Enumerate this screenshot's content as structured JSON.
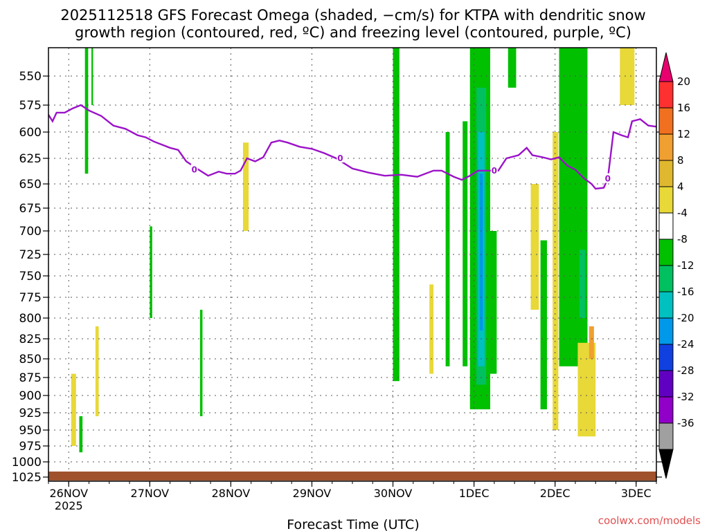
{
  "chart_data": {
    "type": "heatmap",
    "title_lines": [
      "2025112518 GFS Forecast Omega (shaded, −cm/s) for KTPA with dendritic snow",
      "growth region (contoured, red, ºC) and freezing level (contoured, purple, ºC)"
    ],
    "xlabel": "Forecast Time (UTC)",
    "x_range_days": [
      -0.25,
      7.25
    ],
    "x_ticks": [
      {
        "day": 0,
        "label": "26NOV",
        "sub": "2025"
      },
      {
        "day": 1,
        "label": "27NOV"
      },
      {
        "day": 2,
        "label": "28NOV"
      },
      {
        "day": 3,
        "label": "29NOV"
      },
      {
        "day": 4,
        "label": "30NOV"
      },
      {
        "day": 5,
        "label": "1DEC"
      },
      {
        "day": 6,
        "label": "2DEC"
      },
      {
        "day": 7,
        "label": "3DEC"
      }
    ],
    "y_levels": [
      550,
      575,
      600,
      625,
      650,
      675,
      700,
      725,
      750,
      775,
      800,
      825,
      850,
      875,
      900,
      925,
      950,
      975,
      1000,
      1025
    ],
    "colorbar": {
      "labels": [
        20,
        16,
        12,
        8,
        4,
        -4,
        -8,
        -12,
        -16,
        -20,
        -24,
        -28,
        -32,
        -36
      ],
      "colors": [
        "#e8006e",
        "#ff3030",
        "#f07020",
        "#f0a030",
        "#e0b830",
        "#e8d838",
        "#ffffff",
        "#00c000",
        "#00c060",
        "#00c0c0",
        "#0098e8",
        "#1040e0",
        "#6000c0",
        "#9000c8",
        "#a0a0a0",
        "#000000"
      ]
    },
    "freezing_level": {
      "label": "0",
      "label_days": [
        1.55,
        3.35,
        5.25,
        6.65
      ],
      "points": [
        [
          -0.25,
          584
        ],
        [
          -0.2,
          590
        ],
        [
          -0.15,
          582
        ],
        [
          -0.05,
          582
        ],
        [
          0.05,
          578
        ],
        [
          0.15,
          575
        ],
        [
          0.25,
          580
        ],
        [
          0.4,
          585
        ],
        [
          0.55,
          594
        ],
        [
          0.7,
          597
        ],
        [
          0.85,
          603
        ],
        [
          0.95,
          605
        ],
        [
          1.05,
          609
        ],
        [
          1.15,
          612
        ],
        [
          1.25,
          615
        ],
        [
          1.35,
          617
        ],
        [
          1.45,
          628
        ],
        [
          1.6,
          636
        ],
        [
          1.72,
          642
        ],
        [
          1.85,
          638
        ],
        [
          1.95,
          640
        ],
        [
          2.05,
          640
        ],
        [
          2.12,
          637
        ],
        [
          2.2,
          625
        ],
        [
          2.3,
          628
        ],
        [
          2.4,
          624
        ],
        [
          2.5,
          610
        ],
        [
          2.6,
          608
        ],
        [
          2.7,
          610
        ],
        [
          2.85,
          614
        ],
        [
          3.0,
          616
        ],
        [
          3.15,
          620
        ],
        [
          3.3,
          625
        ],
        [
          3.5,
          635
        ],
        [
          3.7,
          639
        ],
        [
          3.9,
          642
        ],
        [
          4.1,
          641
        ],
        [
          4.3,
          643
        ],
        [
          4.5,
          637
        ],
        [
          4.6,
          637
        ],
        [
          4.75,
          643
        ],
        [
          4.85,
          646
        ],
        [
          4.95,
          642
        ],
        [
          5.05,
          637
        ],
        [
          5.2,
          637
        ],
        [
          5.3,
          637
        ],
        [
          5.4,
          625
        ],
        [
          5.55,
          622
        ],
        [
          5.65,
          615
        ],
        [
          5.72,
          622
        ],
        [
          5.85,
          624
        ],
        [
          5.95,
          626
        ],
        [
          6.05,
          624
        ],
        [
          6.15,
          632
        ],
        [
          6.25,
          636
        ],
        [
          6.35,
          644
        ],
        [
          6.45,
          650
        ],
        [
          6.5,
          655
        ],
        [
          6.6,
          654
        ],
        [
          6.65,
          645
        ],
        [
          6.72,
          600
        ],
        [
          6.82,
          603
        ],
        [
          6.9,
          605
        ],
        [
          6.95,
          590
        ],
        [
          7.05,
          588
        ],
        [
          7.15,
          594
        ],
        [
          7.25,
          595
        ]
      ]
    },
    "omega_shading": [
      {
        "cls": 7,
        "day0": 0.2,
        "day1": 0.24,
        "p0": 520,
        "p1": 640,
        "name": "green-streak-26nov"
      },
      {
        "cls": 7,
        "day0": 0.28,
        "day1": 0.3,
        "p0": 520,
        "p1": 575,
        "name": "green-streak-26nov-b"
      },
      {
        "cls": 7,
        "day0": 0.13,
        "day1": 0.17,
        "p0": 930,
        "p1": 985,
        "name": "green-streak-26nov-low"
      },
      {
        "cls": 7,
        "day0": 1.0,
        "day1": 1.03,
        "p0": 695,
        "p1": 800,
        "name": "green-streak-27nov"
      },
      {
        "cls": 7,
        "day0": 1.62,
        "day1": 1.65,
        "p0": 790,
        "p1": 930,
        "name": "green-streak-27nov-b"
      },
      {
        "cls": 7,
        "day0": 4.0,
        "day1": 4.08,
        "p0": 520,
        "p1": 880,
        "name": "green-col-30nov"
      },
      {
        "cls": 7,
        "day0": 4.65,
        "day1": 4.7,
        "p0": 600,
        "p1": 860,
        "name": "green-col-30nov-b"
      },
      {
        "cls": 7,
        "day0": 4.86,
        "day1": 4.92,
        "p0": 590,
        "p1": 860,
        "name": "green-col-30nov-c"
      },
      {
        "cls": 7,
        "day0": 4.95,
        "day1": 5.2,
        "p0": 525,
        "p1": 920,
        "name": "green-block-1dec"
      },
      {
        "cls": 8,
        "day0": 5.03,
        "day1": 5.15,
        "p0": 560,
        "p1": 885,
        "name": "teal-block-1dec"
      },
      {
        "cls": 9,
        "day0": 5.05,
        "day1": 5.13,
        "p0": 600,
        "p1": 860,
        "name": "cyan-block-1dec"
      },
      {
        "cls": 10,
        "day0": 5.07,
        "day1": 5.11,
        "p0": 640,
        "p1": 815,
        "name": "blue-core-1dec"
      },
      {
        "cls": 7,
        "day0": 5.2,
        "day1": 5.28,
        "p0": 700,
        "p1": 870,
        "name": "green-col-1dec-b"
      },
      {
        "cls": 7,
        "day0": 5.42,
        "day1": 5.52,
        "p0": 520,
        "p1": 560,
        "name": "green-top-1dec"
      },
      {
        "cls": 7,
        "day0": 5.82,
        "day1": 5.9,
        "p0": 710,
        "p1": 920,
        "name": "green-col-2dec"
      },
      {
        "cls": 7,
        "day0": 6.05,
        "day1": 6.4,
        "p0": 525,
        "p1": 860,
        "name": "green-block-2dec"
      },
      {
        "cls": 8,
        "day0": 6.3,
        "day1": 6.37,
        "p0": 720,
        "p1": 800,
        "name": "teal-block-2dec"
      }
    ],
    "positive_shading": [
      {
        "day0": 0.03,
        "day1": 0.09,
        "p0": 870,
        "p1": 975,
        "name": "yellow-streak-26nov"
      },
      {
        "day0": 0.33,
        "day1": 0.37,
        "p0": 810,
        "p1": 930,
        "name": "yellow-streak-26nov-b"
      },
      {
        "day0": 2.15,
        "day1": 2.22,
        "p0": 610,
        "p1": 700,
        "name": "yellow-streak-28nov"
      },
      {
        "day0": 4.45,
        "day1": 4.5,
        "p0": 760,
        "p1": 870,
        "name": "yellow-streak-30nov"
      },
      {
        "day0": 5.7,
        "day1": 5.8,
        "p0": 650,
        "p1": 790,
        "name": "yellow-col-1dec"
      },
      {
        "day0": 5.97,
        "day1": 6.04,
        "p0": 600,
        "p1": 950,
        "name": "yellow-col-2dec"
      },
      {
        "day0": 6.28,
        "day1": 6.5,
        "p0": 830,
        "p1": 960,
        "name": "yellow-col-2dec-b"
      },
      {
        "day0": 6.42,
        "day1": 6.48,
        "p0": 810,
        "p1": 850,
        "name": "orange-patch-2dec"
      },
      {
        "day0": 6.8,
        "day1": 6.98,
        "p0": 520,
        "p1": 575,
        "name": "yellow-top-3dec"
      }
    ]
  },
  "credit": "coolwx.com/models"
}
